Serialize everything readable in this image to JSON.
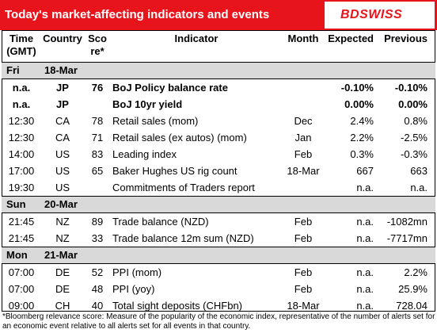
{
  "header": {
    "title": "Today's market-affecting indicators and events",
    "logo": "BDSWISS"
  },
  "table": {
    "columns": [
      [
        "Time",
        "(GMT)"
      ],
      [
        "Country"
      ],
      [
        "Sco",
        "re*"
      ],
      [
        "Indicator"
      ],
      [
        "Month"
      ],
      [
        "Expected"
      ],
      [
        "Previous"
      ]
    ],
    "sections": [
      {
        "day": "Fri",
        "date": "18-Mar",
        "rows": [
          {
            "bold": true,
            "cells": [
              "n.a.",
              "JP",
              "76",
              "BoJ  Policy balance rate",
              null,
              "-0.10%",
              "-0.10%"
            ]
          },
          {
            "bold": true,
            "cells": [
              "n.a.",
              "JP",
              null,
              "BoJ 10yr yield",
              null,
              "0.00%",
              "0.00%"
            ]
          },
          {
            "bold": false,
            "cells": [
              "12:30",
              "CA",
              "78",
              "Retail sales (mom)",
              "Dec",
              "2.4%",
              "0.8%"
            ]
          },
          {
            "bold": false,
            "cells": [
              "12:30",
              "CA",
              "71",
              "Retail sales (ex autos) (mom)",
              "Jan",
              "2.2%",
              "-2.5%"
            ]
          },
          {
            "bold": false,
            "cells": [
              "14:00",
              "US",
              "83",
              "Leading index",
              "Feb",
              "0.3%",
              "-0.3%"
            ]
          },
          {
            "bold": false,
            "cells": [
              "17:00",
              "US",
              "65",
              "Baker Hughes US rig count",
              "18-Mar",
              "667",
              "663"
            ]
          },
          {
            "bold": false,
            "cells": [
              "19:30",
              "US",
              null,
              "Commitments of Traders  report",
              null,
              "n.a.",
              "n.a."
            ]
          }
        ]
      },
      {
        "day": "Sun",
        "date": "20-Mar",
        "rows": [
          {
            "bold": false,
            "cells": [
              "21:45",
              "NZ",
              "89",
              "Trade balance (NZD)",
              "Feb",
              "n.a.",
              "-1082mn"
            ]
          },
          {
            "bold": false,
            "cells": [
              "21:45",
              "NZ",
              "33",
              "Trade balance 12m sum (NZD)",
              "Feb",
              "n.a.",
              "-7717mn"
            ]
          }
        ]
      },
      {
        "day": "Mon",
        "date": "21-Mar",
        "rows": [
          {
            "bold": false,
            "cells": [
              "07:00",
              "DE",
              "52",
              "PPI (mom)",
              "Feb",
              "n.a.",
              "2.2%"
            ]
          },
          {
            "bold": false,
            "cells": [
              "07:00",
              "DE",
              "48",
              "PPI (yoy)",
              "Feb",
              "n.a.",
              "25.9%"
            ]
          },
          {
            "bold": false,
            "cells": [
              "09:00",
              "CH",
              "40",
              "Total sight deposits (CHFbn)",
              "18-Mar",
              "n.a.",
              "728.04"
            ]
          }
        ]
      }
    ]
  },
  "footnote": "*Bloomberg relevance score:  Measure of the popularity of the economic index, representative of the number of alerts set for an economic event relative to all alerts set for all events in that country."
}
